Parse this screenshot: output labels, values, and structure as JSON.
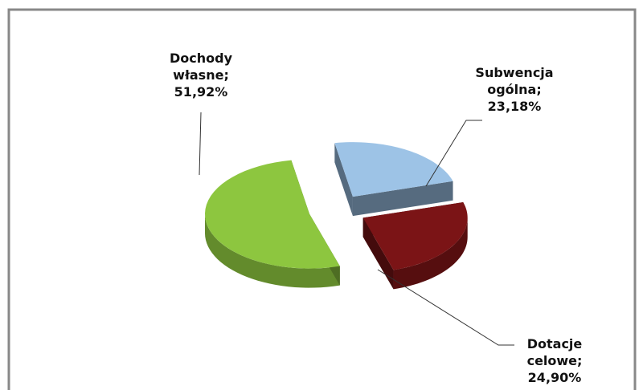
{
  "chart_data": {
    "type": "pie",
    "values": [
      51.92,
      23.18,
      24.9
    ],
    "value_labels": [
      "Dochody własne; 51,92%",
      "Subwencja ogólna; 23,18%",
      "Dotacje celowe; 24,90%"
    ],
    "colors": [
      "#8dc63f",
      "#9dc3e6",
      "#7b1416"
    ]
  }
}
